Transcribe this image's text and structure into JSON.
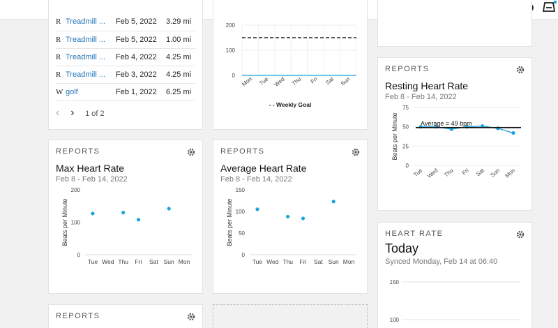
{
  "icons": {
    "upload": "cloud-upload-icon",
    "device": "device-sync-icon"
  },
  "activities": {
    "rows": [
      {
        "type": "R",
        "name": "Treadmill ...",
        "date": "Feb 5, 2022",
        "distance": "3.29 mi"
      },
      {
        "type": "R",
        "name": "Treadmill ...",
        "date": "Feb 5, 2022",
        "distance": "1.00 mi"
      },
      {
        "type": "R",
        "name": "Treadmill ...",
        "date": "Feb 4, 2022",
        "distance": "4.25 mi"
      },
      {
        "type": "R",
        "name": "Treadmill ...",
        "date": "Feb 3, 2022",
        "distance": "4.25 mi"
      },
      {
        "type": "W",
        "name": "golf",
        "date": "Feb 1, 2022",
        "distance": "6.25 mi"
      }
    ],
    "pager": {
      "prev": "‹",
      "next": "›",
      "label": "1 of 2"
    }
  },
  "weekly": {
    "legend": "- - Weekly Goal",
    "chart_data": {
      "type": "line",
      "categories": [
        "Mon",
        "Tue",
        "Wed",
        "Thu",
        "Fri",
        "Sat",
        "Sun"
      ],
      "yticks": [
        "200",
        "100",
        "0"
      ],
      "ylim": [
        0,
        200
      ],
      "series": [
        {
          "values": [
            0,
            0,
            0,
            0,
            0,
            0,
            0
          ]
        }
      ],
      "goal": 150
    }
  },
  "resting": {
    "header": "REPORTS",
    "title": "Resting Heart Rate",
    "subtitle": "Feb 8 - Feb 14, 2022",
    "average_label": "Average = 49 bpm",
    "chart_data": {
      "type": "line",
      "categories": [
        "Tue",
        "Wed",
        "Thu",
        "Fri",
        "Sat",
        "Sun",
        "Mon"
      ],
      "values": [
        50,
        50,
        47,
        50,
        51,
        48,
        42
      ],
      "average": 49,
      "ylabel": "Beats per Minute",
      "yticks": [
        "75",
        "50",
        "25",
        "0"
      ],
      "ylim": [
        0,
        75
      ]
    }
  },
  "maxhr": {
    "header": "REPORTS",
    "title": "Max Heart Rate",
    "subtitle": "Feb 8 - Feb 14, 2022",
    "chart_data": {
      "type": "scatter",
      "categories": [
        "Tue",
        "Wed",
        "Thu",
        "Fri",
        "Sat",
        "Sun",
        "Mon"
      ],
      "values": [
        127,
        null,
        130,
        108,
        null,
        142,
        null
      ],
      "ylabel": "Beats per Minute",
      "yticks": [
        "200",
        "100",
        "0"
      ],
      "ylim": [
        0,
        200
      ]
    }
  },
  "avghr": {
    "header": "REPORTS",
    "title": "Average Heart Rate",
    "subtitle": "Feb 8 - Feb 14, 2022",
    "chart_data": {
      "type": "scatter",
      "categories": [
        "Tue",
        "Wed",
        "Thu",
        "Fri",
        "Sat",
        "Sun",
        "Mon"
      ],
      "values": [
        105,
        null,
        88,
        84,
        null,
        123,
        null
      ],
      "ylabel": "Beats per Minute",
      "yticks": [
        "150",
        "100",
        "50",
        "0"
      ],
      "ylim": [
        0,
        150
      ]
    }
  },
  "heartrate": {
    "header": "HEART RATE",
    "title": "Today",
    "subtitle": "Synced Monday, Feb 14 at 06:40",
    "yticks": [
      "150",
      "100"
    ]
  },
  "bottom": {
    "header": "REPORTS"
  },
  "colors": {
    "accent": "#1fa3dc",
    "link": "#1f73b7"
  }
}
